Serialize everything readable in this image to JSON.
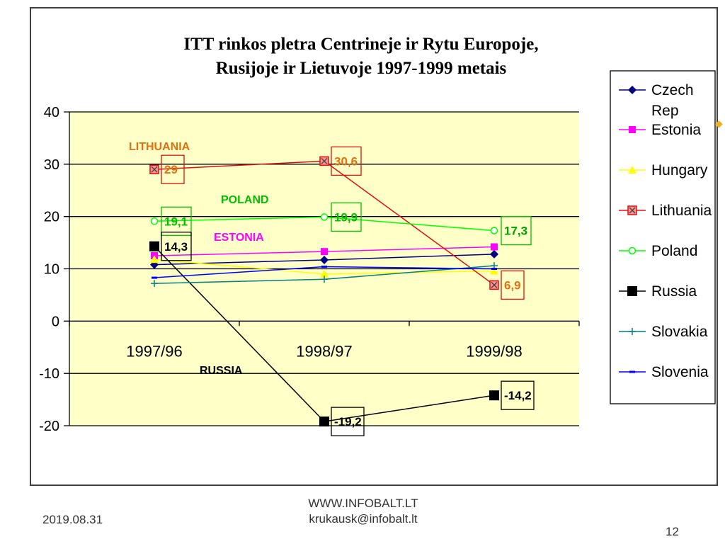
{
  "chart_data": {
    "type": "line",
    "title_lines": [
      "ITT rinkos pletra Centrineje ir Rytu Europoje,",
      "Rusijoje ir Lietuvoje 1997-1999 metais"
    ],
    "categories": [
      "1997/96",
      "1998/97",
      "1999/98"
    ],
    "ylim": [
      -20,
      40
    ],
    "yticks": [
      "40",
      "30",
      "20",
      "10",
      "0",
      "-10",
      "-20"
    ],
    "plot_background": "#ffffc8",
    "grid": true,
    "legend_position": "right",
    "series": [
      {
        "name": "Czech Rep",
        "color": "#000080",
        "marker": "diamond",
        "values": [
          10.8,
          11.7,
          12.8
        ]
      },
      {
        "name": "Estonia",
        "color": "#ff00ff",
        "marker": "square",
        "values": [
          12.5,
          13.3,
          14.2
        ]
      },
      {
        "name": "Hungary",
        "color": "#ffff00",
        "marker": "triangle",
        "values": [
          11.8,
          9.0,
          9.6
        ]
      },
      {
        "name": "Lithuania",
        "color": "#e01010",
        "marker": "xsquare",
        "values": [
          29,
          30.6,
          6.9
        ]
      },
      {
        "name": "Poland",
        "color": "#00ff00",
        "marker": "circle",
        "values": [
          19.1,
          19.9,
          17.3
        ]
      },
      {
        "name": "Russia",
        "color": "#000000",
        "marker": "bigsquare",
        "values": [
          14.3,
          -19.2,
          -14.2
        ]
      },
      {
        "name": "Slovakia",
        "color": "#008080",
        "marker": "plus",
        "values": [
          7.2,
          8.0,
          10.6
        ]
      },
      {
        "name": "Slovenia",
        "color": "#0000ff",
        "marker": "dash",
        "values": [
          8.3,
          10.4,
          10.0
        ]
      }
    ],
    "data_labels": [
      {
        "text": "29",
        "series": "Lithuania",
        "category": 0,
        "value": 29,
        "color": "#e07010",
        "box": "#e01010"
      },
      {
        "text": "30,6",
        "series": "Lithuania",
        "category": 1,
        "value": 30.6,
        "color": "#e07010",
        "box": "#e01010"
      },
      {
        "text": "6,9",
        "series": "Lithuania",
        "category": 2,
        "value": 6.9,
        "color": "#e07010",
        "box": "#e01010"
      },
      {
        "text": "19,1",
        "series": "Poland",
        "category": 0,
        "value": 19.1,
        "color": "#00c000",
        "box": "#00c000"
      },
      {
        "text": "19,9",
        "series": "Poland",
        "category": 1,
        "value": 19.9,
        "color": "#00c000",
        "box": "#00c000"
      },
      {
        "text": "17,3",
        "series": "Poland",
        "category": 2,
        "value": 17.3,
        "color": "#00a000",
        "box": "#00c000"
      },
      {
        "text": "14,3",
        "series": "Russia",
        "category": 0,
        "value": 14.3,
        "color": "#000000",
        "box": "#000000"
      },
      {
        "text": "-19,2",
        "series": "Russia",
        "category": 1,
        "value": -19.2,
        "color": "#000000",
        "box": "#000000"
      },
      {
        "text": "-14,2",
        "series": "Russia",
        "category": 2,
        "value": -14.2,
        "color": "#000000",
        "box": "#000000"
      }
    ],
    "annotations": [
      {
        "text": "LITHUANIA",
        "color": "#e07010"
      },
      {
        "text": "POLAND",
        "color": "#00c000"
      },
      {
        "text": "ESTONIA",
        "color": "#ff00ff"
      },
      {
        "text": "RUSSIA",
        "color": "#000000"
      }
    ]
  },
  "footer": {
    "date": "2019.08.31",
    "site": "WWW.INFOBALT.LT",
    "email": "krukausk@infobalt.lt",
    "page": "12"
  }
}
